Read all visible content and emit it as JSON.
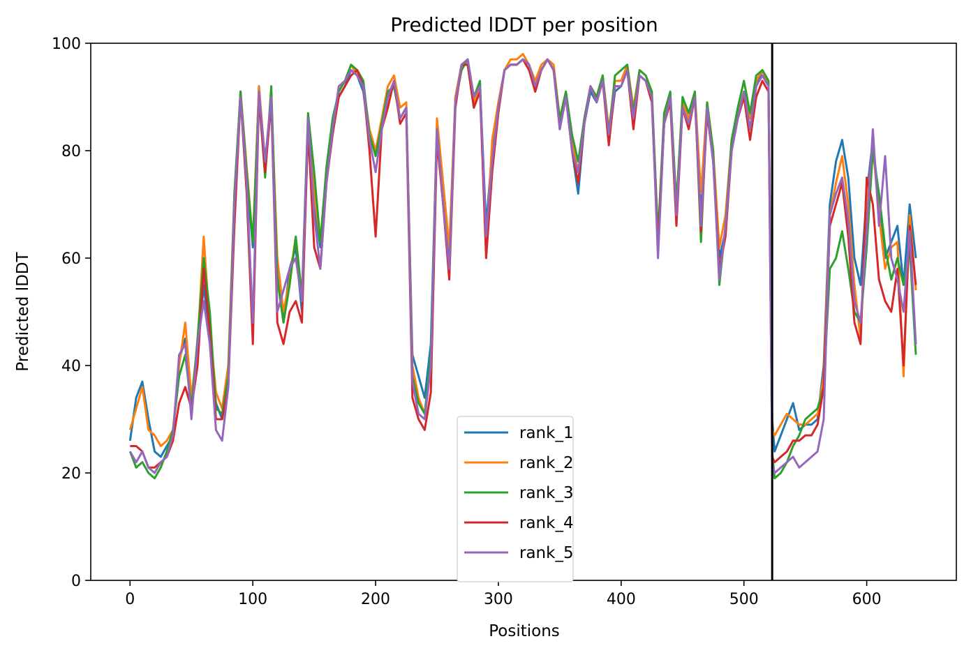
{
  "chart_data": {
    "type": "line",
    "title": "Predicted lDDT per position",
    "xlabel": "Positions",
    "ylabel": "Predicted lDDT",
    "xlim": [
      -32,
      673
    ],
    "ylim": [
      0,
      100
    ],
    "xticks": [
      0,
      100,
      200,
      300,
      400,
      500,
      600
    ],
    "yticks": [
      0,
      20,
      40,
      60,
      80,
      100
    ],
    "grid": false,
    "legend_position": "lower center",
    "vline": 523,
    "x": [
      0,
      5,
      10,
      15,
      20,
      25,
      30,
      35,
      40,
      45,
      50,
      55,
      60,
      65,
      70,
      75,
      80,
      85,
      90,
      95,
      100,
      105,
      110,
      115,
      120,
      125,
      130,
      135,
      140,
      145,
      150,
      155,
      160,
      165,
      170,
      175,
      180,
      185,
      190,
      195,
      200,
      205,
      210,
      215,
      220,
      225,
      230,
      235,
      240,
      245,
      250,
      255,
      260,
      265,
      270,
      275,
      280,
      285,
      290,
      295,
      300,
      305,
      310,
      315,
      320,
      325,
      330,
      335,
      340,
      345,
      350,
      355,
      360,
      365,
      370,
      375,
      380,
      385,
      390,
      395,
      400,
      405,
      410,
      415,
      420,
      425,
      430,
      435,
      440,
      445,
      450,
      455,
      460,
      465,
      470,
      475,
      480,
      485,
      490,
      495,
      500,
      505,
      510,
      515,
      520,
      523,
      525,
      530,
      535,
      540,
      545,
      550,
      555,
      560,
      565,
      570,
      575,
      580,
      585,
      590,
      595,
      600,
      605,
      610,
      615,
      620,
      625,
      630,
      635,
      640
    ],
    "series": [
      {
        "name": "rank_1",
        "color": "#1f77b4",
        "values": [
          26,
          34,
          37,
          30,
          24,
          23,
          25,
          27,
          41,
          45,
          33,
          42,
          55,
          45,
          33,
          30,
          38,
          70,
          91,
          75,
          62,
          92,
          76,
          90,
          58,
          48,
          58,
          62,
          50,
          84,
          70,
          62,
          75,
          84,
          90,
          92,
          95,
          94,
          91,
          82,
          80,
          84,
          90,
          92,
          86,
          88,
          42,
          38,
          34,
          44,
          85,
          73,
          60,
          90,
          96,
          96,
          88,
          92,
          66,
          80,
          88,
          95,
          96,
          96,
          97,
          96,
          92,
          95,
          97,
          95,
          85,
          90,
          80,
          72,
          85,
          91,
          89,
          93,
          82,
          91,
          92,
          95,
          85,
          94,
          93,
          90,
          62,
          85,
          90,
          68,
          88,
          85,
          90,
          70,
          88,
          78,
          60,
          65,
          80,
          86,
          90,
          84,
          92,
          95,
          93,
          30,
          24,
          27,
          30,
          33,
          28,
          29,
          29,
          30,
          40,
          70,
          78,
          82,
          75,
          60,
          55,
          72,
          82,
          70,
          60,
          63,
          66,
          55,
          70,
          60
        ]
      },
      {
        "name": "rank_2",
        "color": "#ff7f0e",
        "values": [
          28,
          32,
          36,
          28,
          27,
          25,
          26,
          28,
          40,
          48,
          34,
          44,
          64,
          47,
          35,
          32,
          40,
          72,
          91,
          77,
          63,
          92,
          78,
          90,
          60,
          50,
          56,
          64,
          52,
          86,
          72,
          63,
          76,
          85,
          91,
          93,
          96,
          94,
          92,
          84,
          80,
          86,
          92,
          94,
          88,
          89,
          40,
          34,
          31,
          40,
          86,
          74,
          62,
          90,
          96,
          97,
          89,
          92,
          62,
          82,
          89,
          95,
          97,
          97,
          98,
          96,
          93,
          96,
          97,
          96,
          86,
          91,
          82,
          76,
          86,
          92,
          90,
          94,
          84,
          93,
          93,
          96,
          88,
          95,
          94,
          91,
          64,
          86,
          90,
          70,
          89,
          86,
          91,
          72,
          89,
          80,
          62,
          68,
          82,
          87,
          91,
          86,
          93,
          95,
          92,
          28,
          27,
          29,
          31,
          30,
          29,
          29,
          30,
          31,
          38,
          68,
          74,
          79,
          70,
          55,
          45,
          70,
          81,
          68,
          58,
          62,
          63,
          38,
          68,
          54
        ]
      },
      {
        "name": "rank_3",
        "color": "#2ca02c",
        "values": [
          24,
          21,
          22,
          20,
          19,
          21,
          24,
          28,
          38,
          42,
          32,
          45,
          60,
          50,
          32,
          31,
          38,
          72,
          91,
          76,
          63,
          90,
          75,
          92,
          56,
          48,
          55,
          64,
          53,
          87,
          76,
          63,
          77,
          86,
          91,
          93,
          96,
          95,
          93,
          83,
          79,
          85,
          91,
          92,
          86,
          88,
          38,
          33,
          31,
          42,
          84,
          70,
          58,
          89,
          95,
          97,
          90,
          93,
          62,
          77,
          88,
          95,
          96,
          96,
          97,
          96,
          91,
          95,
          97,
          95,
          86,
          91,
          83,
          78,
          86,
          92,
          90,
          94,
          83,
          94,
          95,
          96,
          87,
          95,
          94,
          91,
          64,
          87,
          91,
          70,
          90,
          87,
          91,
          63,
          89,
          80,
          55,
          66,
          82,
          88,
          93,
          87,
          94,
          95,
          93,
          24,
          19,
          20,
          22,
          25,
          27,
          30,
          31,
          32,
          36,
          58,
          60,
          65,
          58,
          50,
          48,
          62,
          80,
          72,
          62,
          56,
          60,
          55,
          62,
          42
        ]
      },
      {
        "name": "rank_4",
        "color": "#d62728",
        "values": [
          25,
          25,
          24,
          21,
          21,
          22,
          23,
          26,
          33,
          36,
          32,
          40,
          58,
          46,
          30,
          30,
          36,
          66,
          90,
          72,
          44,
          90,
          76,
          89,
          48,
          44,
          50,
          52,
          48,
          84,
          62,
          58,
          74,
          83,
          90,
          92,
          94,
          95,
          92,
          80,
          64,
          84,
          88,
          93,
          85,
          87,
          34,
          30,
          28,
          35,
          82,
          70,
          56,
          88,
          96,
          96,
          88,
          91,
          60,
          76,
          87,
          95,
          96,
          96,
          97,
          95,
          91,
          95,
          97,
          95,
          84,
          90,
          80,
          74,
          85,
          92,
          89,
          93,
          81,
          92,
          92,
          95,
          84,
          94,
          93,
          89,
          62,
          85,
          89,
          66,
          88,
          84,
          90,
          65,
          87,
          78,
          58,
          64,
          80,
          86,
          90,
          82,
          90,
          93,
          91,
          23,
          22,
          23,
          24,
          26,
          26,
          27,
          27,
          29,
          36,
          66,
          70,
          74,
          64,
          48,
          44,
          75,
          70,
          56,
          52,
          50,
          58,
          40,
          66,
          55
        ]
      },
      {
        "name": "rank_5",
        "color": "#9467bd",
        "values": [
          24,
          22,
          24,
          21,
          20,
          22,
          23,
          27,
          42,
          44,
          30,
          44,
          52,
          44,
          28,
          26,
          36,
          70,
          90,
          74,
          48,
          91,
          78,
          90,
          50,
          54,
          58,
          60,
          52,
          86,
          68,
          58,
          74,
          84,
          92,
          93,
          95,
          94,
          92,
          82,
          76,
          84,
          90,
          93,
          86,
          88,
          37,
          31,
          30,
          40,
          84,
          70,
          58,
          89,
          96,
          97,
          90,
          92,
          64,
          78,
          88,
          95,
          96,
          96,
          97,
          96,
          92,
          95,
          97,
          95,
          84,
          90,
          80,
          76,
          85,
          92,
          89,
          93,
          83,
          92,
          92,
          95,
          86,
          94,
          93,
          90,
          60,
          85,
          90,
          68,
          88,
          85,
          90,
          66,
          88,
          78,
          56,
          66,
          80,
          86,
          91,
          84,
          92,
          94,
          92,
          22,
          20,
          21,
          22,
          23,
          21,
          22,
          23,
          24,
          30,
          68,
          72,
          75,
          67,
          52,
          48,
          65,
          84,
          66,
          79,
          60,
          56,
          50,
          65,
          44
        ]
      }
    ]
  }
}
